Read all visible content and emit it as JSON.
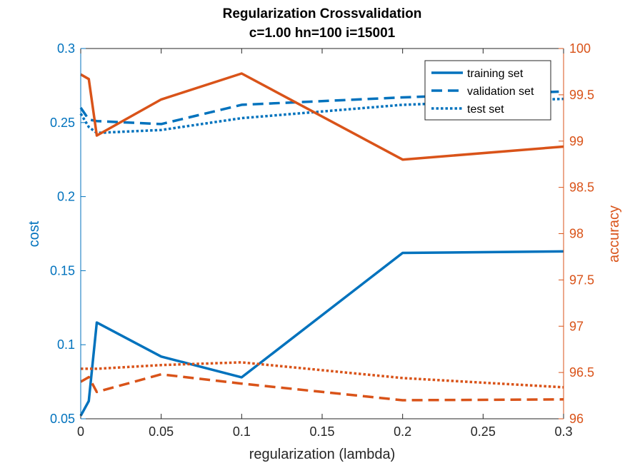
{
  "chart_data": {
    "type": "line",
    "title": [
      "Regularization Crossvalidation",
      "c=1.00 hn=100 i=15001"
    ],
    "xlabel": "regularization (lambda)",
    "ylabel_left": "cost",
    "ylabel_right": "accuracy",
    "xlim": [
      0,
      0.3
    ],
    "ylim_left": [
      0.05,
      0.3
    ],
    "ylim_right": [
      96,
      100
    ],
    "x_ticks": [
      "0",
      "0.05",
      "0.1",
      "0.15",
      "0.2",
      "0.25",
      "0.3"
    ],
    "y_ticks_left": [
      "0.05",
      "0.1",
      "0.15",
      "0.2",
      "0.25",
      "0.3"
    ],
    "y_ticks_right": [
      "96",
      "96.5",
      "97",
      "97.5",
      "98",
      "98.5",
      "99",
      "99.5",
      "100"
    ],
    "legend": {
      "placement": "top-right",
      "entries": [
        {
          "label": "training set",
          "style": "solid"
        },
        {
          "label": "validation set",
          "style": "dashed"
        },
        {
          "label": "test set",
          "style": "dotted"
        }
      ]
    },
    "colors": {
      "cost": "#0072BD",
      "accuracy": "#D95319"
    },
    "x": [
      0,
      0.005,
      0.01,
      0.05,
      0.1,
      0.2,
      0.3
    ],
    "series": [
      {
        "name": "training set",
        "axis": "left",
        "style": "solid",
        "values": [
          0.052,
          0.062,
          0.115,
          0.092,
          0.078,
          0.162,
          0.163
        ]
      },
      {
        "name": "validation set",
        "axis": "left",
        "style": "dashed",
        "values": [
          0.26,
          0.252,
          0.251,
          0.249,
          0.262,
          0.267,
          0.271
        ]
      },
      {
        "name": "test set",
        "axis": "left",
        "style": "dotted",
        "values": [
          0.256,
          0.247,
          0.243,
          0.245,
          0.253,
          0.262,
          0.266
        ]
      },
      {
        "name": "training set",
        "axis": "right",
        "style": "solid",
        "values": [
          99.72,
          99.67,
          99.06,
          99.45,
          99.73,
          98.8,
          98.94
        ]
      },
      {
        "name": "validation set",
        "axis": "right",
        "style": "dashed",
        "values": [
          96.4,
          96.45,
          96.29,
          96.48,
          96.38,
          96.2,
          96.21
        ]
      },
      {
        "name": "test set",
        "axis": "right",
        "style": "dotted",
        "values": [
          96.54,
          96.54,
          96.54,
          96.58,
          96.61,
          96.44,
          96.34
        ]
      }
    ]
  }
}
